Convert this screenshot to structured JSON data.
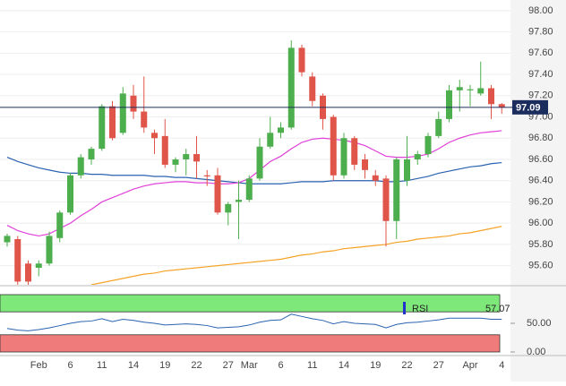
{
  "chart_data": [
    {
      "type": "candlestick",
      "categories": [
        null,
        null,
        null,
        "Feb",
        null,
        null,
        "6",
        null,
        null,
        "11",
        null,
        null,
        "14",
        null,
        null,
        "19",
        null,
        null,
        "22",
        null,
        null,
        "27",
        null,
        "Mar",
        null,
        null,
        "6",
        null,
        null,
        "11",
        null,
        null,
        "14",
        null,
        null,
        "19",
        null,
        null,
        "22",
        null,
        null,
        "27",
        null,
        null,
        "Apr",
        null,
        null,
        "4"
      ],
      "open": [
        95.82,
        95.85,
        95.62,
        95.58,
        95.62,
        95.86,
        96.1,
        96.45,
        96.6,
        96.7,
        97.1,
        96.85,
        97.2,
        97.05,
        96.85,
        96.82,
        96.55,
        96.6,
        96.65,
        96.45,
        96.45,
        96.1,
        96.2,
        96.22,
        96.42,
        96.72,
        96.85,
        96.9,
        97.65,
        97.38,
        97.2,
        97.0,
        96.45,
        96.8,
        96.6,
        96.45,
        96.42,
        96.02,
        96.4,
        96.6,
        96.65,
        96.82,
        96.98,
        97.25,
        97.25,
        97.22,
        97.27,
        97.12
      ],
      "high": [
        95.9,
        95.88,
        95.65,
        95.65,
        95.92,
        96.12,
        96.47,
        96.65,
        96.72,
        97.12,
        97.15,
        97.28,
        97.3,
        97.38,
        96.88,
        96.98,
        96.62,
        96.7,
        96.82,
        96.5,
        96.52,
        96.2,
        96.4,
        96.45,
        96.8,
        97.0,
        96.95,
        97.72,
        97.68,
        97.42,
        97.22,
        97.02,
        96.85,
        96.82,
        96.65,
        96.5,
        96.45,
        96.62,
        96.82,
        96.68,
        96.85,
        97.05,
        97.3,
        97.35,
        97.3,
        97.52,
        97.3,
        97.13
      ],
      "low": [
        95.78,
        95.42,
        95.42,
        95.5,
        95.6,
        95.82,
        96.08,
        96.42,
        96.55,
        96.68,
        96.78,
        96.83,
        96.98,
        96.85,
        96.65,
        96.52,
        96.48,
        96.45,
        96.42,
        96.35,
        96.08,
        95.98,
        95.85,
        96.2,
        96.4,
        96.7,
        96.8,
        96.88,
        97.38,
        97.1,
        96.88,
        96.4,
        96.42,
        96.5,
        96.42,
        96.35,
        95.78,
        95.85,
        96.35,
        96.55,
        96.62,
        96.8,
        96.95,
        97.05,
        97.1,
        97.2,
        96.98,
        97.03
      ],
      "close": [
        95.88,
        95.45,
        95.45,
        95.62,
        95.88,
        96.1,
        96.45,
        96.62,
        96.7,
        97.1,
        96.8,
        97.22,
        97.05,
        96.9,
        96.8,
        96.55,
        96.6,
        96.65,
        96.58,
        96.44,
        96.1,
        96.18,
        96.22,
        96.42,
        96.72,
        96.85,
        96.9,
        97.65,
        97.42,
        97.15,
        96.98,
        96.45,
        96.8,
        96.55,
        96.5,
        96.4,
        96.02,
        96.6,
        96.6,
        96.65,
        96.82,
        96.98,
        97.25,
        97.28,
        97.26,
        97.27,
        97.12,
        97.09
      ],
      "up_color": "#4cae4c",
      "down_color": "#e0554a",
      "series": [
        {
          "color": "#2a62b0",
          "values": [
            96.62,
            96.58,
            96.55,
            96.52,
            96.5,
            96.48,
            96.47,
            96.47,
            96.46,
            96.46,
            96.45,
            96.45,
            96.45,
            96.45,
            96.44,
            96.44,
            96.43,
            96.43,
            96.42,
            96.41,
            96.4,
            96.39,
            96.38,
            96.37,
            96.37,
            96.37,
            96.37,
            96.38,
            96.39,
            96.39,
            96.39,
            96.4,
            96.4,
            96.4,
            96.4,
            96.4,
            96.39,
            96.39,
            96.4,
            96.42,
            96.44,
            96.47,
            96.49,
            96.51,
            96.53,
            96.54,
            96.56,
            96.57
          ]
        },
        {
          "color": "#e040d8",
          "values": [
            95.98,
            95.93,
            95.9,
            95.88,
            95.9,
            95.95,
            96.0,
            96.07,
            96.13,
            96.2,
            96.24,
            96.28,
            96.32,
            96.35,
            96.37,
            96.38,
            96.39,
            96.39,
            96.38,
            96.38,
            96.37,
            96.37,
            96.38,
            96.42,
            96.5,
            96.58,
            96.63,
            96.7,
            96.76,
            96.79,
            96.8,
            96.79,
            96.78,
            96.76,
            96.73,
            96.68,
            96.63,
            96.62,
            96.62,
            96.63,
            96.65,
            96.7,
            96.76,
            96.8,
            96.83,
            96.85,
            96.86,
            96.87
          ]
        },
        {
          "color": "#f5a327",
          "values": [
            null,
            null,
            null,
            null,
            null,
            null,
            null,
            null,
            95.42,
            95.44,
            95.46,
            95.48,
            95.5,
            95.52,
            95.53,
            95.55,
            95.56,
            95.57,
            95.58,
            95.59,
            95.6,
            95.61,
            95.62,
            95.63,
            95.64,
            95.65,
            95.66,
            95.68,
            95.7,
            95.71,
            95.73,
            95.74,
            95.76,
            95.77,
            95.78,
            95.79,
            95.8,
            95.82,
            95.83,
            95.85,
            95.86,
            95.87,
            95.88,
            95.9,
            95.91,
            95.93,
            95.95,
            95.97
          ]
        }
      ],
      "ylim": [
        95.42,
        98.1
      ],
      "yticks": [
        {
          "value": 95.6,
          "label": "95.60"
        },
        {
          "value": 95.8,
          "label": "95.80"
        },
        {
          "value": 96.0,
          "label": "96.00"
        },
        {
          "value": 96.2,
          "label": "96.20"
        },
        {
          "value": 96.4,
          "label": "96.40"
        },
        {
          "value": 96.6,
          "label": "96.60"
        },
        {
          "value": 96.8,
          "label": "96.80"
        },
        {
          "value": 97.0,
          "label": "97.00"
        },
        {
          "value": 97.2,
          "label": "97.20"
        },
        {
          "value": 97.4,
          "label": "97.40"
        },
        {
          "value": 97.6,
          "label": "97.60"
        },
        {
          "value": 97.8,
          "label": "97.80"
        },
        {
          "value": 98.0,
          "label": "98.00"
        }
      ]
    },
    {
      "type": "line",
      "title": "RSI",
      "color": "#2a62b0",
      "values": [
        41,
        38,
        37,
        39,
        42,
        46,
        50,
        53,
        54,
        58,
        53,
        57,
        55,
        52,
        50,
        47,
        48,
        49,
        48,
        46,
        42,
        43,
        44,
        47,
        52,
        55,
        56,
        66,
        62,
        58,
        55,
        49,
        53,
        50,
        49,
        48,
        42,
        48,
        51,
        52,
        54,
        56,
        59,
        59,
        59,
        59,
        57,
        57.07
      ],
      "bands": [
        {
          "from": 70,
          "to": 100,
          "color": "#7fe87a"
        },
        {
          "from": 0,
          "to": 30,
          "color": "#f07b7b"
        }
      ],
      "ylim": [
        0,
        100
      ],
      "yticks": [
        {
          "value": 0,
          "label": "0.00"
        },
        {
          "value": 50,
          "label": "50.00"
        }
      ]
    }
  ]
}
